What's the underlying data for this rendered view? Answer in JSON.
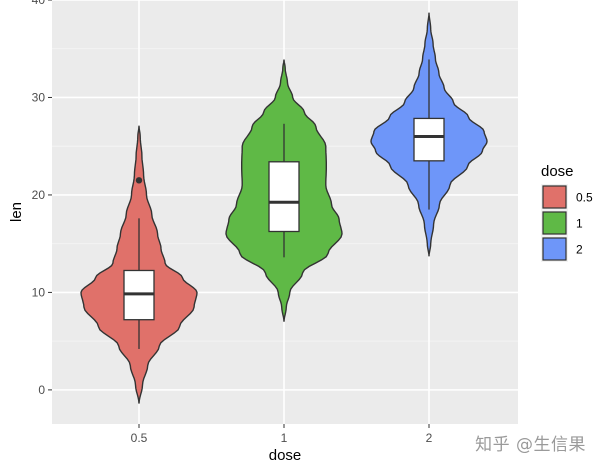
{
  "chart_data": {
    "type": "violin",
    "title": "",
    "xlabel": "dose",
    "ylabel": "len",
    "ylim": [
      -3.5,
      40
    ],
    "yticks": [
      0,
      10,
      20,
      30,
      40
    ],
    "categories": [
      "0.5",
      "1",
      "2"
    ],
    "grid": true,
    "legend": {
      "title": "dose",
      "position": "right",
      "entries": [
        "0.5",
        "1",
        "2"
      ]
    },
    "series": [
      {
        "category": "0.5",
        "color": "#E0716A",
        "min": 4.2,
        "q1": 7.2,
        "median": 9.85,
        "q3": 12.25,
        "max": 17.6,
        "outliers": [
          21.5
        ],
        "violin_range": [
          -1.4,
          27.1
        ],
        "density_profile": [
          [
            -1.4,
            0.0
          ],
          [
            0.5,
            0.06
          ],
          [
            2.5,
            0.15
          ],
          [
            4.5,
            0.35
          ],
          [
            6.5,
            0.7
          ],
          [
            8.5,
            0.95
          ],
          [
            10.0,
            1.0
          ],
          [
            11.5,
            0.75
          ],
          [
            13.0,
            0.45
          ],
          [
            14.5,
            0.38
          ],
          [
            16.0,
            0.32
          ],
          [
            18.0,
            0.22
          ],
          [
            20.0,
            0.13
          ],
          [
            22.0,
            0.08
          ],
          [
            24.0,
            0.05
          ],
          [
            26.0,
            0.02
          ],
          [
            27.1,
            0.0
          ]
        ]
      },
      {
        "category": "1",
        "color": "#5FB946",
        "min": 13.6,
        "q1": 16.25,
        "median": 19.25,
        "q3": 23.4,
        "max": 27.3,
        "outliers": [],
        "violin_range": [
          7.0,
          33.9
        ],
        "density_profile": [
          [
            7.0,
            0.0
          ],
          [
            8.5,
            0.04
          ],
          [
            10.0,
            0.1
          ],
          [
            12.0,
            0.32
          ],
          [
            14.0,
            0.76
          ],
          [
            16.0,
            1.0
          ],
          [
            17.5,
            0.95
          ],
          [
            19.0,
            0.82
          ],
          [
            21.0,
            0.72
          ],
          [
            23.0,
            0.73
          ],
          [
            25.0,
            0.72
          ],
          [
            27.0,
            0.55
          ],
          [
            28.5,
            0.35
          ],
          [
            30.0,
            0.15
          ],
          [
            31.5,
            0.06
          ],
          [
            33.0,
            0.02
          ],
          [
            33.9,
            0.0
          ]
        ]
      },
      {
        "category": "2",
        "color": "#6E96F9",
        "min": 18.5,
        "q1": 23.5,
        "median": 26.0,
        "q3": 27.85,
        "max": 33.9,
        "outliers": [],
        "violin_range": [
          13.7,
          38.7
        ],
        "density_profile": [
          [
            13.7,
            0.0
          ],
          [
            15.0,
            0.03
          ],
          [
            17.0,
            0.08
          ],
          [
            19.0,
            0.18
          ],
          [
            21.0,
            0.36
          ],
          [
            23.0,
            0.67
          ],
          [
            24.5,
            0.92
          ],
          [
            25.5,
            1.0
          ],
          [
            26.5,
            0.95
          ],
          [
            28.0,
            0.68
          ],
          [
            29.5,
            0.42
          ],
          [
            31.0,
            0.26
          ],
          [
            32.5,
            0.17
          ],
          [
            34.0,
            0.11
          ],
          [
            35.5,
            0.07
          ],
          [
            37.0,
            0.03
          ],
          [
            38.7,
            0.0
          ]
        ]
      }
    ]
  },
  "watermark": "知乎 @生信果"
}
